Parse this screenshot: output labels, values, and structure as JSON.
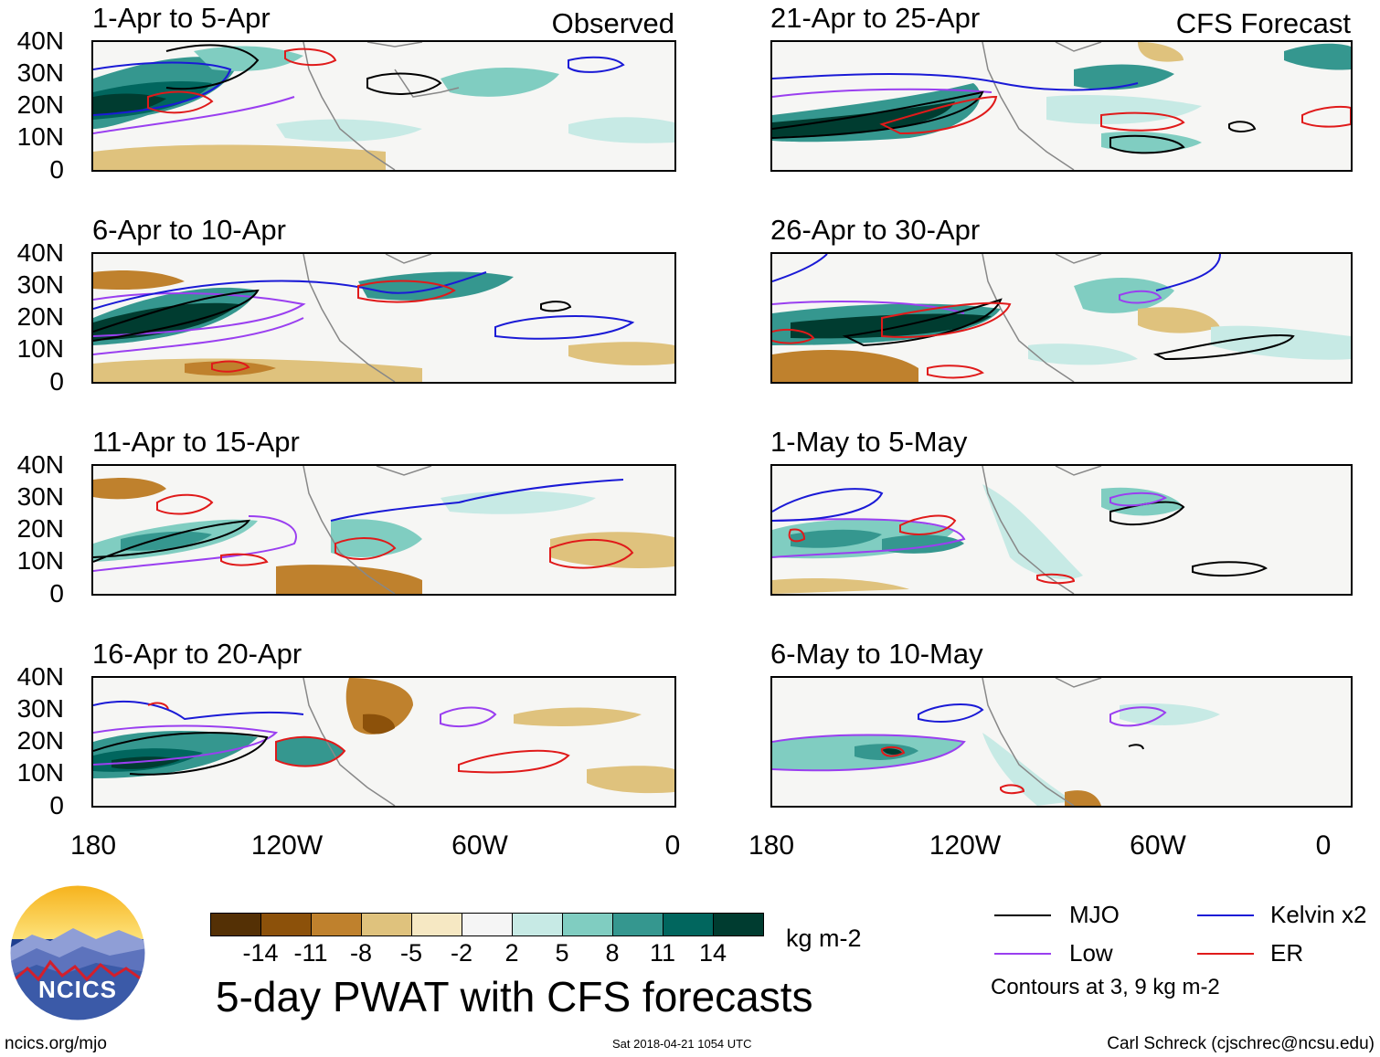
{
  "header": {
    "observed_label": "Observed",
    "forecast_label": "CFS Forecast"
  },
  "panels": {
    "left": [
      {
        "title": "1-Apr to 5-Apr"
      },
      {
        "title": "6-Apr to 10-Apr"
      },
      {
        "title": "11-Apr to 15-Apr"
      },
      {
        "title": "16-Apr to 20-Apr"
      }
    ],
    "right": [
      {
        "title": "21-Apr to 25-Apr"
      },
      {
        "title": "26-Apr to 30-Apr"
      },
      {
        "title": "1-May to 5-May"
      },
      {
        "title": "6-May to 10-May"
      }
    ]
  },
  "axes": {
    "lat_labels": [
      "40N",
      "30N",
      "20N",
      "10N",
      "0"
    ],
    "lon_labels": [
      "180",
      "120W",
      "60W",
      "0"
    ]
  },
  "colorbar": {
    "unit": "kg m-2",
    "ticks": [
      "-14",
      "-11",
      "-8",
      "-5",
      "-2",
      "2",
      "5",
      "8",
      "11",
      "14"
    ],
    "colors": [
      "#543005",
      "#8c510a",
      "#bf812d",
      "#dfc27d",
      "#f6e8c3",
      "#f5f5f5",
      "#c7eae5",
      "#80cdc1",
      "#35978f",
      "#01665e",
      "#003c30"
    ]
  },
  "title": "5-day PWAT with CFS forecasts",
  "legend": {
    "items": [
      {
        "label": "MJO",
        "color": "#000000"
      },
      {
        "label": "Kelvin x2",
        "color": "#1a1ad6"
      },
      {
        "label": "Low",
        "color": "#9a3ff0"
      },
      {
        "label": "ER",
        "color": "#e01a1a"
      }
    ],
    "note": "Contours at 3, 9 kg m-2"
  },
  "logo": {
    "text": "NCICS"
  },
  "footer": {
    "url": "ncics.org/mjo",
    "timestamp": "Sat 2018-04-21 1054 UTC",
    "author": "Carl Schreck (cjschrec@ncsu.edu)"
  }
}
